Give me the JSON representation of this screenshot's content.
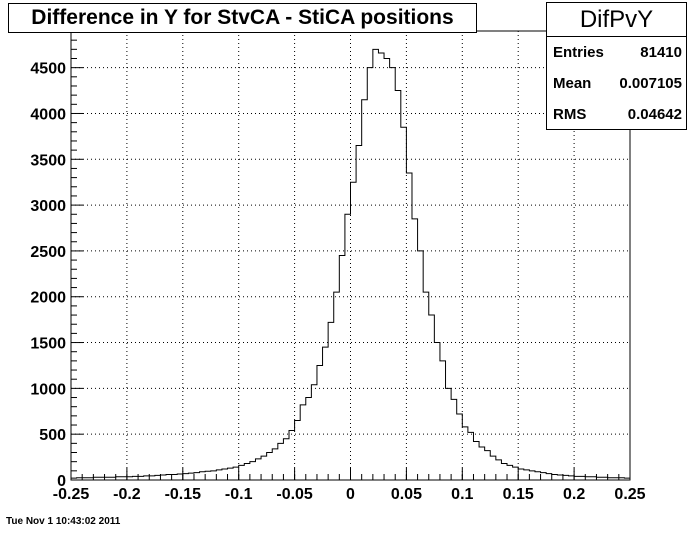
{
  "title": "Difference in Y for StvCA - StiCA positions",
  "stats": {
    "name": "DifPvY",
    "rows": [
      {
        "label": "Entries",
        "value": "81410"
      },
      {
        "label": "Mean",
        "value": "0.007105"
      },
      {
        "label": "RMS",
        "value": "0.04642"
      }
    ]
  },
  "timestamp": "Tue Nov  1 10:43:02 2011",
  "chart_data": {
    "type": "histogram",
    "xlim": [
      -0.25,
      0.25
    ],
    "ylim": [
      0,
      4900
    ],
    "grid": true,
    "x_ticks": [
      -0.25,
      -0.2,
      -0.15,
      -0.1,
      -0.05,
      0,
      0.05,
      0.1,
      0.15,
      0.2,
      0.25
    ],
    "x_tick_labels": [
      "-0.25",
      "-0.2",
      "-0.15",
      "-0.1",
      "-0.05",
      "0",
      "0.05",
      "0.1",
      "0.15",
      "0.2",
      "0.25"
    ],
    "y_ticks": [
      0,
      500,
      1000,
      1500,
      2000,
      2500,
      3000,
      3500,
      4000,
      4500
    ],
    "y_tick_labels": [
      "0",
      "500",
      "1000",
      "1500",
      "2000",
      "2500",
      "3000",
      "3500",
      "4000",
      "4500"
    ],
    "bin_edges_start": -0.25,
    "bin_width": 0.005,
    "counts": [
      20,
      25,
      25,
      25,
      30,
      30,
      30,
      30,
      35,
      35,
      35,
      40,
      40,
      45,
      45,
      50,
      55,
      60,
      60,
      65,
      70,
      75,
      80,
      90,
      95,
      100,
      110,
      120,
      130,
      140,
      160,
      180,
      200,
      230,
      260,
      300,
      340,
      400,
      450,
      540,
      650,
      820,
      900,
      1040,
      1250,
      1450,
      1720,
      2050,
      2450,
      2900,
      3250,
      3650,
      4150,
      4500,
      4700,
      4660,
      4600,
      4500,
      4250,
      3850,
      3350,
      2850,
      2500,
      2050,
      1800,
      1500,
      1300,
      1000,
      880,
      720,
      580,
      520,
      420,
      360,
      320,
      260,
      220,
      180,
      160,
      140,
      120,
      110,
      100,
      90,
      80,
      70,
      60,
      55,
      50,
      45,
      40,
      40,
      35,
      35,
      30,
      30,
      25,
      25,
      25,
      20
    ]
  }
}
